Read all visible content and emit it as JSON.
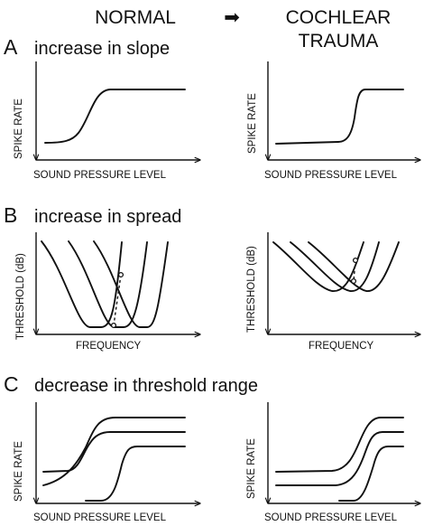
{
  "headers": {
    "left": "NORMAL",
    "arrow": "➡",
    "right_line1": "COCHLEAR",
    "right_line2": "TRAUMA"
  },
  "sections": [
    {
      "letter": "A",
      "title": "increase in slope"
    },
    {
      "letter": "B",
      "title": "increase in spread"
    },
    {
      "letter": "C",
      "title": "decrease in threshold range"
    }
  ],
  "axis_labels": {
    "spike_rate": "SPIKE RATE",
    "sound_pressure_level": "SOUND PRESSURE LEVEL",
    "threshold_db": "THRESHOLD (dB)",
    "frequency": "FREQUENCY"
  }
}
